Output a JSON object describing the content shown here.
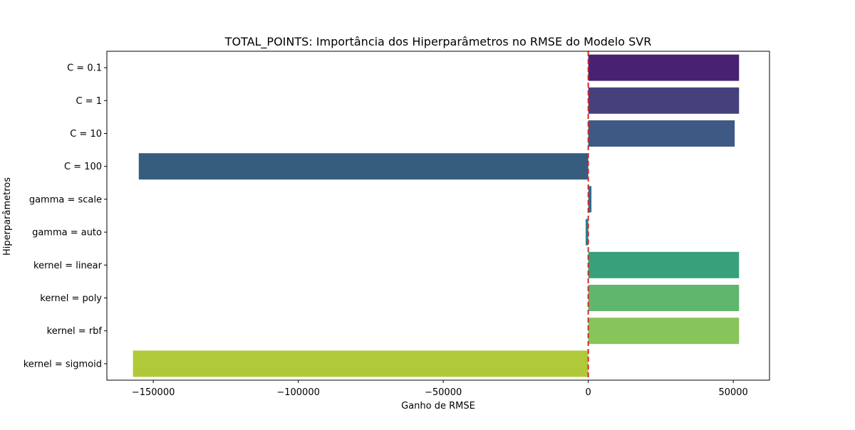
{
  "chart_data": {
    "type": "bar",
    "orientation": "horizontal",
    "title": "TOTAL_POINTS: Importância dos Hiperparâmetros no RMSE do Modelo SVR",
    "xlabel": "Ganho de RMSE",
    "ylabel": "Hiperparâmetros",
    "categories": [
      "C = 0.1",
      "C = 1",
      "C = 10",
      "C = 100",
      "gamma = scale",
      "gamma = auto",
      "kernel = linear",
      "kernel = poly",
      "kernel = rbf",
      "kernel = sigmoid"
    ],
    "values": [
      52000,
      52000,
      50500,
      -155000,
      1100,
      -900,
      52000,
      52000,
      52000,
      -157000
    ],
    "colors": [
      "#482173",
      "#46417d",
      "#3e5a84",
      "#365d7e",
      "#2e6e8e",
      "#2c7e8e",
      "#38a07a",
      "#5fb66d",
      "#87c45a",
      "#b0c93a"
    ],
    "xlim": [
      -166000,
      62500
    ],
    "xticks": [
      -150000,
      -100000,
      -50000,
      0,
      50000
    ],
    "xtick_labels": [
      "−150000",
      "−100000",
      "−50000",
      "0",
      "50000"
    ],
    "reference_line": {
      "x": 0,
      "style": "dashed",
      "color": "#d62728"
    },
    "grid": false,
    "legend": "none"
  }
}
